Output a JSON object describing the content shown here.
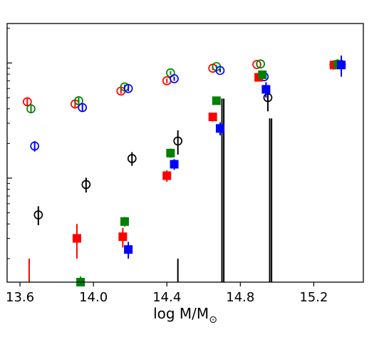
{
  "chart_data": {
    "type": "scatter",
    "xlabel": "log M/M",
    "xlabel_subscript": "⊙",
    "xlim": [
      13.53,
      15.47
    ],
    "x_ticks": [
      13.6,
      14.0,
      14.4,
      14.8,
      15.2
    ],
    "x_tick_labels": [
      "13.6",
      "14.0",
      "14.4",
      "14.8",
      "15.2"
    ],
    "y_scale": "log",
    "ylim": [
      0.0125,
      2.2
    ],
    "y_major_ticks": [
      0.1,
      1
    ],
    "y_minor_ticks": [
      0.02,
      0.03,
      0.04,
      0.05,
      0.06,
      0.07,
      0.08,
      0.09,
      0.2,
      0.3,
      0.4,
      0.5,
      0.6,
      0.7,
      0.8,
      0.9,
      2
    ],
    "grid": false,
    "legend": "none",
    "series": [
      {
        "marker": "open-circle",
        "color": "#ff0000",
        "points": [
          {
            "x": 13.64,
            "y": 0.46,
            "err": 0.03
          },
          {
            "x": 13.9,
            "y": 0.44,
            "err": 0.03
          },
          {
            "x": 14.15,
            "y": 0.57,
            "err": 0.03
          },
          {
            "x": 14.4,
            "y": 0.7,
            "err": 0.03
          },
          {
            "x": 14.65,
            "y": 0.9,
            "err": 0.03
          },
          {
            "x": 14.89,
            "y": 0.97,
            "err": 0.02
          },
          {
            "x": 15.31,
            "y": 0.96,
            "err": 0.02
          }
        ]
      },
      {
        "marker": "open-circle",
        "color": "#008000",
        "points": [
          {
            "x": 13.66,
            "y": 0.4,
            "err": 0.03
          },
          {
            "x": 13.92,
            "y": 0.47,
            "err": 0.03
          },
          {
            "x": 14.17,
            "y": 0.62,
            "err": 0.03
          },
          {
            "x": 14.42,
            "y": 0.82,
            "err": 0.03
          },
          {
            "x": 14.67,
            "y": 0.93,
            "err": 0.03
          },
          {
            "x": 14.91,
            "y": 0.98,
            "err": 0.02
          },
          {
            "x": 15.33,
            "y": 0.98,
            "err": 0.02
          }
        ]
      },
      {
        "marker": "open-circle",
        "color": "#0000ff",
        "points": [
          {
            "x": 13.68,
            "y": 0.19,
            "err": 0.02
          },
          {
            "x": 13.94,
            "y": 0.41,
            "err": 0.03
          },
          {
            "x": 14.19,
            "y": 0.6,
            "err": 0.03
          },
          {
            "x": 14.44,
            "y": 0.73,
            "err": 0.03
          },
          {
            "x": 14.69,
            "y": 0.86,
            "err": 0.03
          },
          {
            "x": 14.93,
            "y": 0.76,
            "err": 0.02
          },
          {
            "x": 15.35,
            "y": 0.97,
            "err": 0.02
          }
        ]
      },
      {
        "marker": "open-circle",
        "color": "#000000",
        "points": [
          {
            "x": 13.7,
            "y": 0.048,
            "err": 0.009
          },
          {
            "x": 13.96,
            "y": 0.088,
            "err": 0.013
          },
          {
            "x": 14.21,
            "y": 0.148,
            "err": 0.02
          },
          {
            "x": 14.46,
            "y": 0.21,
            "err": 0.05
          },
          {
            "x": 14.95,
            "y": 0.5,
            "err": 0.12
          }
        ]
      },
      {
        "marker": "filled-square",
        "color": "#ff0000",
        "points": [
          {
            "x": 13.91,
            "y": 0.03,
            "err": 0.01
          },
          {
            "x": 14.16,
            "y": 0.031,
            "err": 0.006
          },
          {
            "x": 14.4,
            "y": 0.105,
            "err": 0.012
          },
          {
            "x": 14.65,
            "y": 0.34,
            "err": 0.03
          },
          {
            "x": 14.9,
            "y": 0.75,
            "err": 0.06
          },
          {
            "x": 15.31,
            "y": 0.96,
            "err": 0.03
          }
        ]
      },
      {
        "marker": "filled-square",
        "color": "#008000",
        "points": [
          {
            "x": 13.93,
            "y": 0.0125,
            "err": 0.0015
          },
          {
            "x": 14.17,
            "y": 0.042,
            "err": 0.004
          },
          {
            "x": 14.42,
            "y": 0.165,
            "err": 0.015
          },
          {
            "x": 14.67,
            "y": 0.47,
            "err": 0.03
          },
          {
            "x": 14.92,
            "y": 0.79,
            "err": 0.04
          },
          {
            "x": 15.33,
            "y": 0.97,
            "err": 0.03
          }
        ]
      },
      {
        "marker": "filled-square",
        "color": "#0000ff",
        "points": [
          {
            "x": 14.19,
            "y": 0.024,
            "err": 0.004
          },
          {
            "x": 14.44,
            "y": 0.132,
            "err": 0.014
          },
          {
            "x": 14.69,
            "y": 0.27,
            "err": 0.035
          },
          {
            "x": 14.94,
            "y": 0.59,
            "err": 0.09
          },
          {
            "x": 15.35,
            "y": 0.96,
            "err": 0.2
          }
        ]
      }
    ],
    "upper_bars": [
      {
        "x": 13.65,
        "color": "#ff0000",
        "y_top": 0.02
      },
      {
        "x": 14.46,
        "color": "#000000",
        "y_top": 0.02
      },
      {
        "x": 14.7,
        "color": "#000000",
        "y_top": 0.49
      },
      {
        "x": 14.71,
        "color": "#000000",
        "y_top": 0.49
      },
      {
        "x": 14.96,
        "color": "#000000",
        "y_top": 0.33
      },
      {
        "x": 14.97,
        "color": "#000000",
        "y_top": 0.33
      }
    ]
  }
}
